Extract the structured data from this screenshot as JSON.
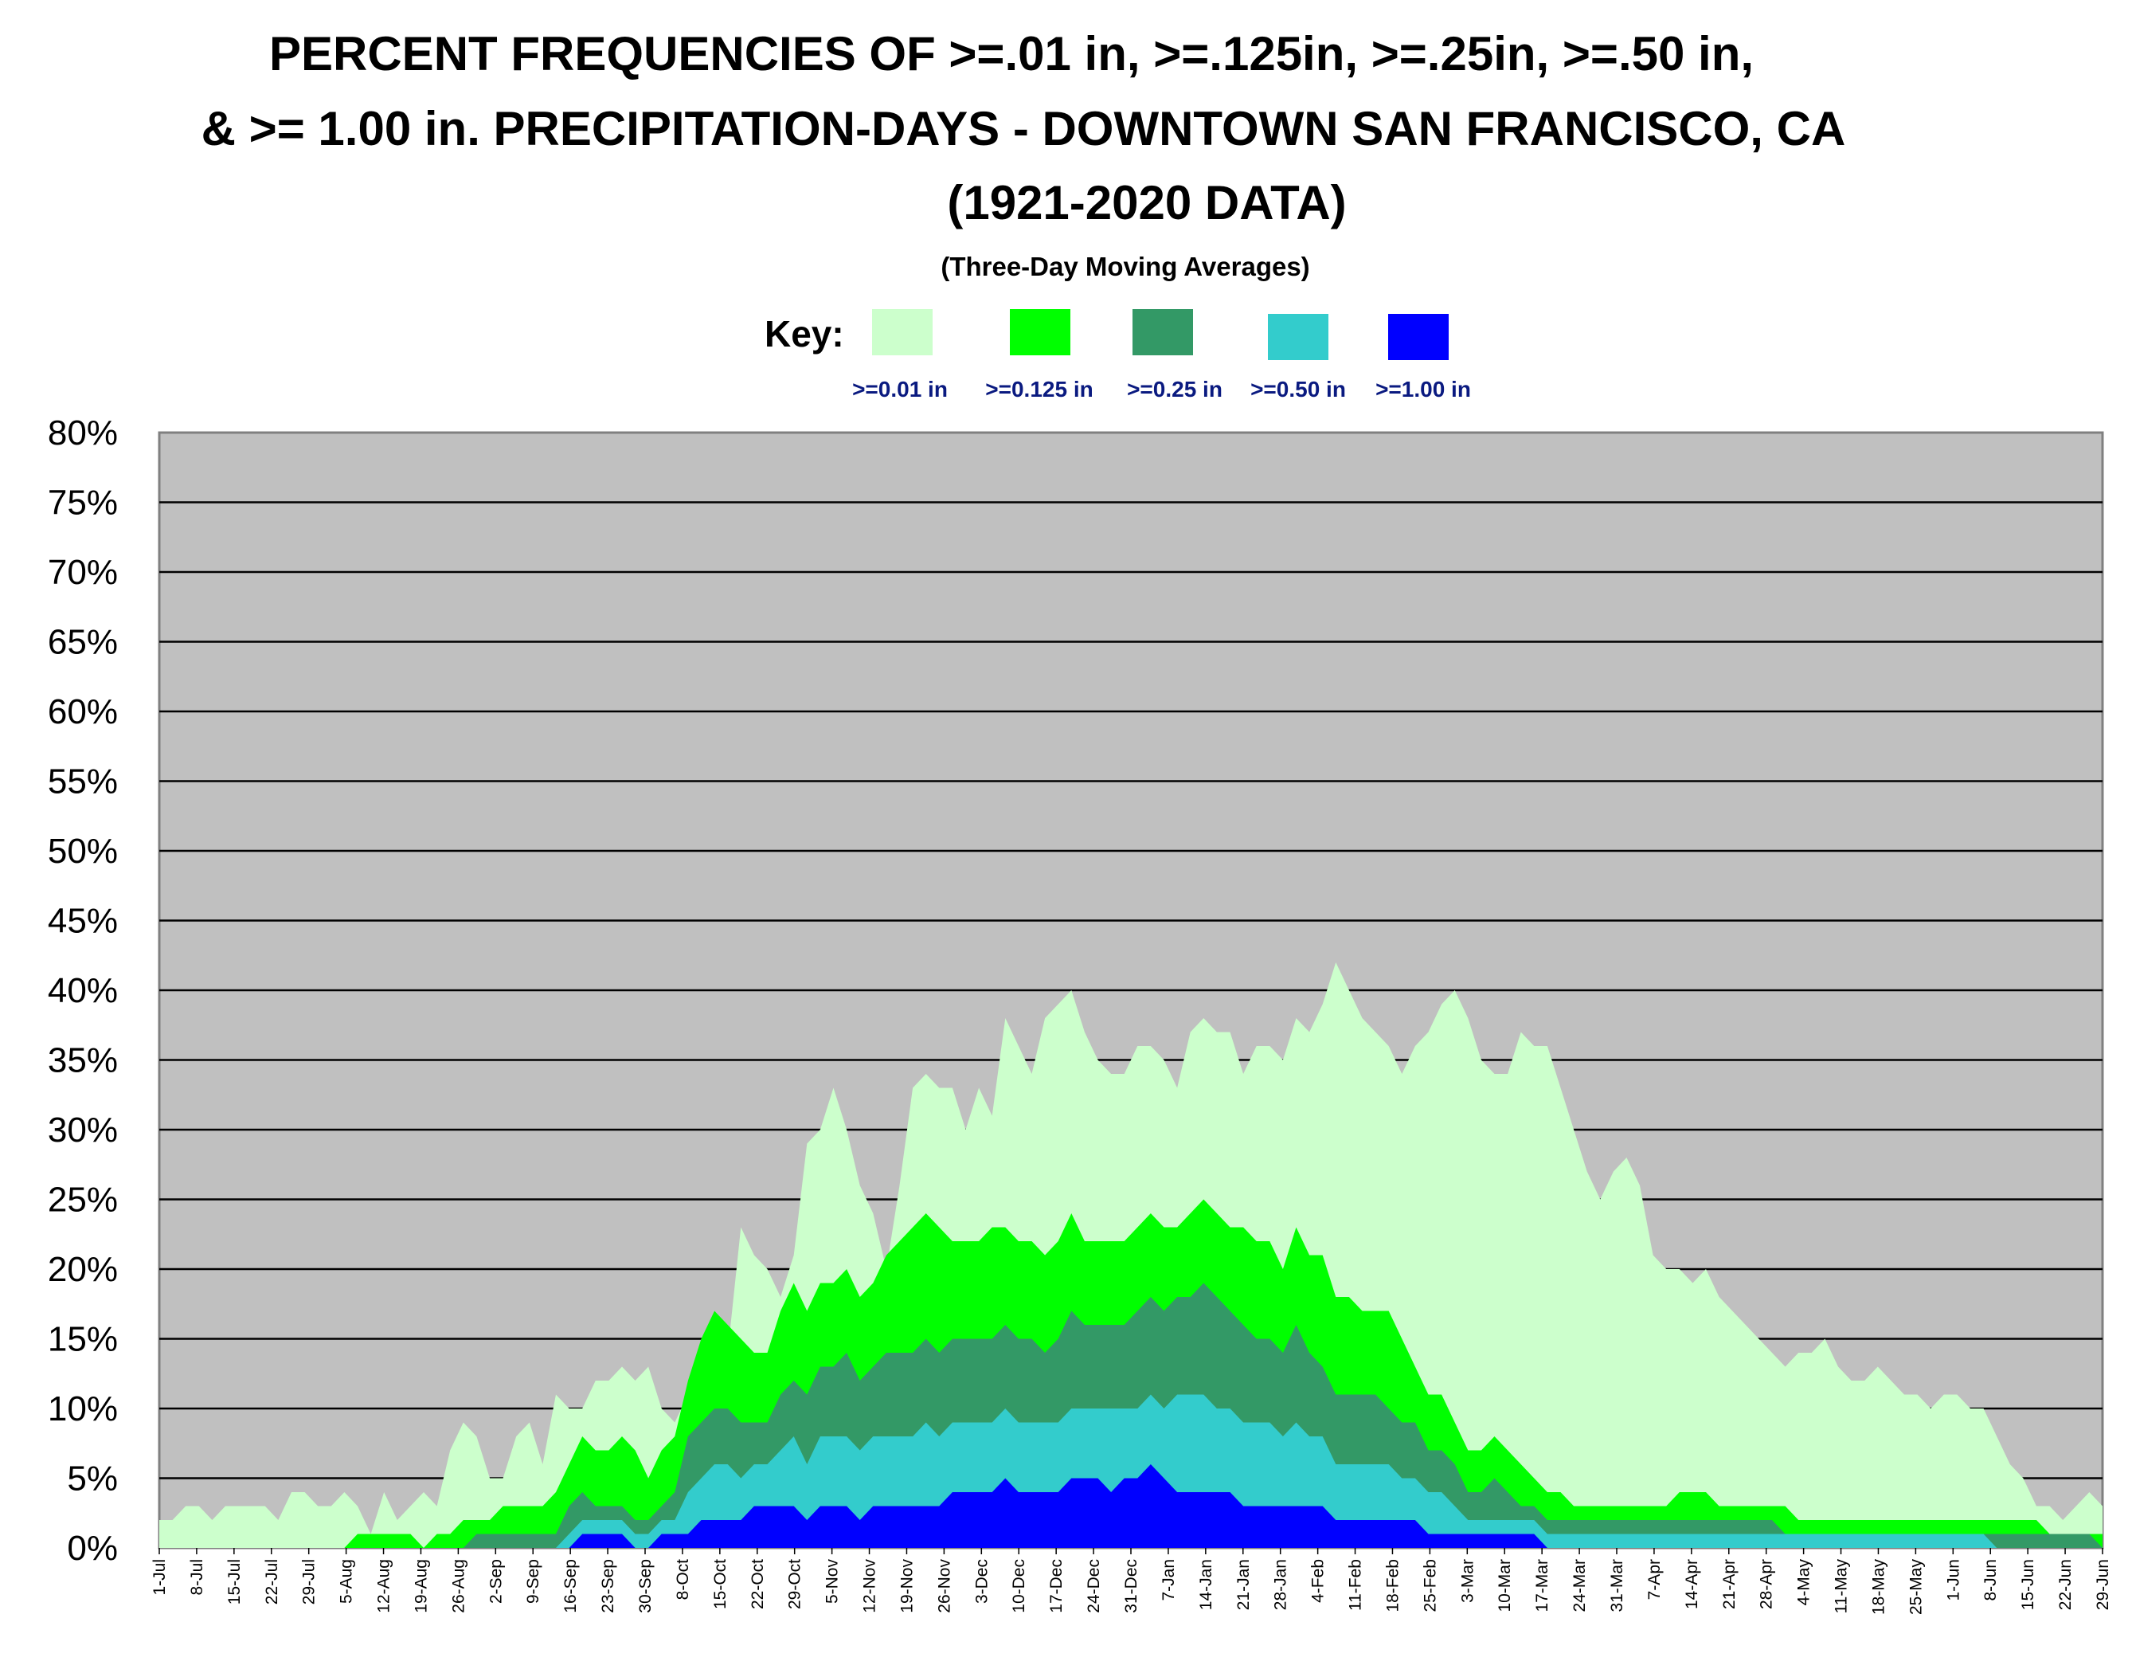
{
  "chart_data": {
    "type": "area",
    "title_lines": [
      "PERCENT FREQUENCIES OF >=.01 in, >=.125in, >=.25in, >=.50 in,",
      "& >= 1.00 in. PRECIPITATION-DAYS -  DOWNTOWN SAN FRANCISCO, CA",
      "(1921-2020 DATA)"
    ],
    "subtitle": "(Three-Day Moving Averages)",
    "key_label": "Key:",
    "ylim": [
      0,
      80
    ],
    "yticks": [
      "0%",
      "5%",
      "10%",
      "15%",
      "20%",
      "25%",
      "30%",
      "35%",
      "40%",
      "45%",
      "50%",
      "55%",
      "60%",
      "65%",
      "70%",
      "75%",
      "80%"
    ],
    "xticks": [
      "1-Jul",
      "8-Jul",
      "15-Jul",
      "22-Jul",
      "29-Jul",
      "5-Aug",
      "12-Aug",
      "19-Aug",
      "26-Aug",
      "2-Sep",
      "9-Sep",
      "16-Sep",
      "23-Sep",
      "30-Sep",
      "8-Oct",
      "15-Oct",
      "22-Oct",
      "29-Oct",
      "5-Nov",
      "12-Nov",
      "19-Nov",
      "26-Nov",
      "3-Dec",
      "10-Dec",
      "17-Dec",
      "24-Dec",
      "31-Dec",
      "7-Jan",
      "14-Jan",
      "21-Jan",
      "28-Jan",
      "4-Feb",
      "11-Feb",
      "18-Feb",
      "25-Feb",
      "3-Mar",
      "10-Mar",
      "17-Mar",
      "24-Mar",
      "31-Mar",
      "7-Apr",
      "14-Apr",
      "21-Apr",
      "28-Apr",
      "4-May",
      "11-May",
      "18-May",
      "25-May",
      "1-Jun",
      "8-Jun",
      "15-Jun",
      "22-Jun",
      "29-Jun"
    ],
    "grid": true,
    "background": "#c0c0c0",
    "series": [
      {
        "name": ">=0.01 in",
        "color": "#ccffcc",
        "values": [
          2,
          2,
          3,
          3,
          2,
          3,
          3,
          3,
          3,
          2,
          4,
          4,
          3,
          3,
          4,
          3,
          1,
          4,
          2,
          3,
          4,
          3,
          7,
          9,
          8,
          5,
          5,
          8,
          9,
          6,
          11,
          10,
          10,
          12,
          12,
          13,
          12,
          13,
          10,
          9,
          11,
          15,
          15,
          14,
          23,
          21,
          20,
          18,
          21,
          29,
          30,
          33,
          30,
          26,
          24,
          20,
          26,
          33,
          34,
          33,
          33,
          30,
          33,
          31,
          38,
          36,
          34,
          38,
          39,
          40,
          37,
          35,
          34,
          34,
          36,
          36,
          35,
          33,
          37,
          38,
          37,
          37,
          34,
          36,
          36,
          35,
          38,
          37,
          39,
          42,
          40,
          38,
          37,
          36,
          34,
          36,
          37,
          39,
          40,
          38,
          35,
          34,
          34,
          37,
          36,
          36,
          33,
          30,
          27,
          25,
          27,
          28,
          26,
          21,
          20,
          20,
          19,
          20,
          18,
          17,
          16,
          15,
          14,
          13,
          14,
          14,
          15,
          13,
          12,
          12,
          13,
          12,
          11,
          11,
          10,
          11,
          11,
          10,
          10,
          8,
          6,
          5,
          3,
          3,
          2,
          3,
          4,
          3
        ]
      },
      {
        "name": ">=0.125 in",
        "color": "#00ff00",
        "values": [
          0,
          0,
          0,
          0,
          0,
          0,
          0,
          0,
          0,
          0,
          0,
          0,
          0,
          0,
          0,
          1,
          1,
          1,
          1,
          1,
          0,
          1,
          1,
          2,
          2,
          2,
          3,
          3,
          3,
          3,
          4,
          6,
          8,
          7,
          7,
          8,
          7,
          5,
          7,
          8,
          12,
          15,
          17,
          16,
          15,
          14,
          14,
          17,
          19,
          17,
          19,
          19,
          20,
          18,
          19,
          21,
          22,
          23,
          24,
          23,
          22,
          22,
          22,
          23,
          23,
          22,
          22,
          21,
          22,
          24,
          22,
          22,
          22,
          22,
          23,
          24,
          23,
          23,
          24,
          25,
          24,
          23,
          23,
          22,
          22,
          20,
          23,
          21,
          21,
          18,
          18,
          17,
          17,
          17,
          15,
          13,
          11,
          11,
          9,
          7,
          7,
          8,
          7,
          6,
          5,
          4,
          4,
          3,
          3,
          3,
          3,
          3,
          3,
          3,
          3,
          4,
          4,
          4,
          3,
          3,
          3,
          3,
          3,
          3,
          2,
          2,
          2,
          2,
          2,
          2,
          2,
          2,
          2,
          2,
          2,
          2,
          2,
          2,
          2,
          2,
          2,
          2,
          2,
          1,
          1,
          1,
          1,
          1
        ]
      },
      {
        "name": ">=0.25 in",
        "color": "#339966",
        "values": [
          0,
          0,
          0,
          0,
          0,
          0,
          0,
          0,
          0,
          0,
          0,
          0,
          0,
          0,
          0,
          0,
          0,
          0,
          0,
          0,
          0,
          0,
          0,
          0,
          1,
          1,
          1,
          1,
          1,
          1,
          1,
          3,
          4,
          3,
          3,
          3,
          2,
          2,
          3,
          4,
          8,
          9,
          10,
          10,
          9,
          9,
          9,
          11,
          12,
          11,
          13,
          13,
          14,
          12,
          13,
          14,
          14,
          14,
          15,
          14,
          15,
          15,
          15,
          15,
          16,
          15,
          15,
          14,
          15,
          17,
          16,
          16,
          16,
          16,
          17,
          18,
          17,
          18,
          18,
          19,
          18,
          17,
          16,
          15,
          15,
          14,
          16,
          14,
          13,
          11,
          11,
          11,
          11,
          10,
          9,
          9,
          7,
          7,
          6,
          4,
          4,
          5,
          4,
          3,
          3,
          2,
          2,
          2,
          2,
          2,
          2,
          2,
          2,
          2,
          2,
          2,
          2,
          2,
          2,
          2,
          2,
          2,
          2,
          1,
          1,
          1,
          1,
          1,
          1,
          1,
          1,
          1,
          1,
          1,
          1,
          1,
          1,
          1,
          1,
          1,
          1,
          1,
          1,
          1,
          1,
          1,
          1,
          0
        ]
      },
      {
        "name": ">=0.50 in",
        "color": "#33cccc",
        "values": [
          0,
          0,
          0,
          0,
          0,
          0,
          0,
          0,
          0,
          0,
          0,
          0,
          0,
          0,
          0,
          0,
          0,
          0,
          0,
          0,
          0,
          0,
          0,
          0,
          0,
          0,
          0,
          0,
          0,
          0,
          0,
          1,
          2,
          2,
          2,
          2,
          1,
          1,
          2,
          2,
          4,
          5,
          6,
          6,
          5,
          6,
          6,
          7,
          8,
          6,
          8,
          8,
          8,
          7,
          8,
          8,
          8,
          8,
          9,
          8,
          9,
          9,
          9,
          9,
          10,
          9,
          9,
          9,
          9,
          10,
          10,
          10,
          10,
          10,
          10,
          11,
          10,
          11,
          11,
          11,
          10,
          10,
          9,
          9,
          9,
          8,
          9,
          8,
          8,
          6,
          6,
          6,
          6,
          6,
          5,
          5,
          4,
          4,
          3,
          2,
          2,
          2,
          2,
          2,
          2,
          1,
          1,
          1,
          1,
          1,
          1,
          1,
          1,
          1,
          1,
          1,
          1,
          1,
          1,
          1,
          1,
          1,
          1,
          1,
          1,
          1,
          1,
          1,
          1,
          1,
          1,
          1,
          1,
          1,
          1,
          1,
          1,
          1,
          1,
          0,
          0,
          0,
          0,
          0,
          0,
          0,
          0,
          0
        ]
      },
      {
        "name": ">=1.00 in",
        "color": "#0000ff",
        "values": [
          0,
          0,
          0,
          0,
          0,
          0,
          0,
          0,
          0,
          0,
          0,
          0,
          0,
          0,
          0,
          0,
          0,
          0,
          0,
          0,
          0,
          0,
          0,
          0,
          0,
          0,
          0,
          0,
          0,
          0,
          0,
          0,
          1,
          1,
          1,
          1,
          0,
          0,
          1,
          1,
          1,
          2,
          2,
          2,
          2,
          3,
          3,
          3,
          3,
          2,
          3,
          3,
          3,
          2,
          3,
          3,
          3,
          3,
          3,
          3,
          4,
          4,
          4,
          4,
          5,
          4,
          4,
          4,
          4,
          5,
          5,
          5,
          4,
          5,
          5,
          6,
          5,
          4,
          4,
          4,
          4,
          4,
          3,
          3,
          3,
          3,
          3,
          3,
          3,
          2,
          2,
          2,
          2,
          2,
          2,
          2,
          1,
          1,
          1,
          1,
          1,
          1,
          1,
          1,
          1,
          0,
          0,
          0,
          0,
          0,
          0,
          0,
          0,
          0,
          0,
          0,
          0,
          0,
          0,
          0,
          0,
          0,
          0,
          0,
          0,
          0,
          0,
          0,
          0,
          0,
          0,
          0,
          0,
          0,
          0,
          0,
          0,
          0,
          0,
          0,
          0,
          0,
          0,
          0,
          0,
          0,
          0,
          0
        ]
      }
    ]
  }
}
